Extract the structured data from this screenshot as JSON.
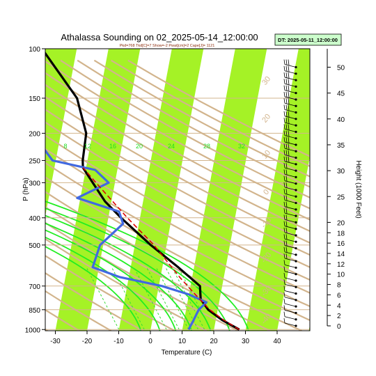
{
  "chart_data": {
    "type": "skew-t",
    "title": "Athalassa Sounding on 02_2025-05-14_12:00:00",
    "subtitle": "Pkd=768 Tkd[C]=7 Show=-2 Pwat[cm]=2 Cape[J]= 1121",
    "datetime_box": "DT: 2025-05-11_12:00:00",
    "xlabel": "Temperature (C)",
    "ylabel": "P (hPa)",
    "y2label": "Height (1000 Feet)",
    "xlim": [
      -33,
      45
    ],
    "ylim": [
      1010,
      100
    ],
    "x_ticks": [
      -30,
      -20,
      -10,
      0,
      10,
      20,
      30,
      40
    ],
    "y_ticks": [
      100,
      150,
      200,
      250,
      300,
      400,
      500,
      700,
      850,
      1000
    ],
    "height_ticks": [
      0,
      2,
      4,
      6,
      8,
      10,
      12,
      14,
      16,
      18,
      20,
      25,
      30,
      35,
      40,
      45,
      50
    ],
    "mixing_ratio_labels": [
      "8",
      "12",
      "16",
      "20",
      "24",
      "28",
      "32"
    ],
    "dry_adiabat_labels": [
      "30",
      "20",
      "10",
      "0",
      "-10",
      "-20",
      "-30",
      "-40"
    ],
    "series": [
      {
        "name": "",
        "color": "#000000",
        "values": [
          {
            "p": 1000,
            "t": 28
          },
          {
            "p": 925,
            "t": 22
          },
          {
            "p": 850,
            "t": 17
          },
          {
            "p": 780,
            "t": 14
          },
          {
            "p": 700,
            "t": 13
          },
          {
            "p": 600,
            "t": 5
          },
          {
            "p": 500,
            "t": -5
          },
          {
            "p": 400,
            "t": -16
          },
          {
            "p": 350,
            "t": -22
          },
          {
            "p": 300,
            "t": -27
          },
          {
            "p": 265,
            "t": -31
          },
          {
            "p": 250,
            "t": -31.5
          },
          {
            "p": 200,
            "t": -32
          },
          {
            "p": 150,
            "t": -37
          },
          {
            "p": 100,
            "t": -51
          }
        ]
      },
      {
        "name": "",
        "color": "#4169e1",
        "values": [
          {
            "p": 1000,
            "t": 12
          },
          {
            "p": 925,
            "t": 13
          },
          {
            "p": 850,
            "t": 14
          },
          {
            "p": 800,
            "t": 16
          },
          {
            "p": 750,
            "t": 10
          },
          {
            "p": 700,
            "t": 1
          },
          {
            "p": 650,
            "t": -13
          },
          {
            "p": 600,
            "t": -22
          },
          {
            "p": 500,
            "t": -21
          },
          {
            "p": 420,
            "t": -15
          },
          {
            "p": 380,
            "t": -17
          },
          {
            "p": 340,
            "t": -31
          },
          {
            "p": 300,
            "t": -22
          },
          {
            "p": 270,
            "t": -27
          },
          {
            "p": 250,
            "t": -41
          },
          {
            "p": 200,
            "t": -49
          },
          {
            "p": 150,
            "t": -55
          },
          {
            "p": 100,
            "t": -78
          }
        ]
      },
      {
        "name": "",
        "color": "#dd0000",
        "dashed": true,
        "values": [
          {
            "p": 1000,
            "t": 28
          },
          {
            "p": 925,
            "t": 22.5
          },
          {
            "p": 850,
            "t": 17.5
          },
          {
            "p": 750,
            "t": 12
          },
          {
            "p": 650,
            "t": 6
          },
          {
            "p": 500,
            "t": -4
          },
          {
            "p": 400,
            "t": -14
          },
          {
            "p": 300,
            "t": -26
          },
          {
            "p": 265,
            "t": -31
          }
        ]
      }
    ]
  }
}
